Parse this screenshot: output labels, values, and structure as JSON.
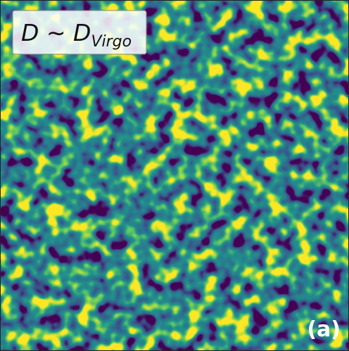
{
  "label": {
    "main": "D ∼ D",
    "subscript": "Virgo"
  },
  "panel": "(a)"
}
